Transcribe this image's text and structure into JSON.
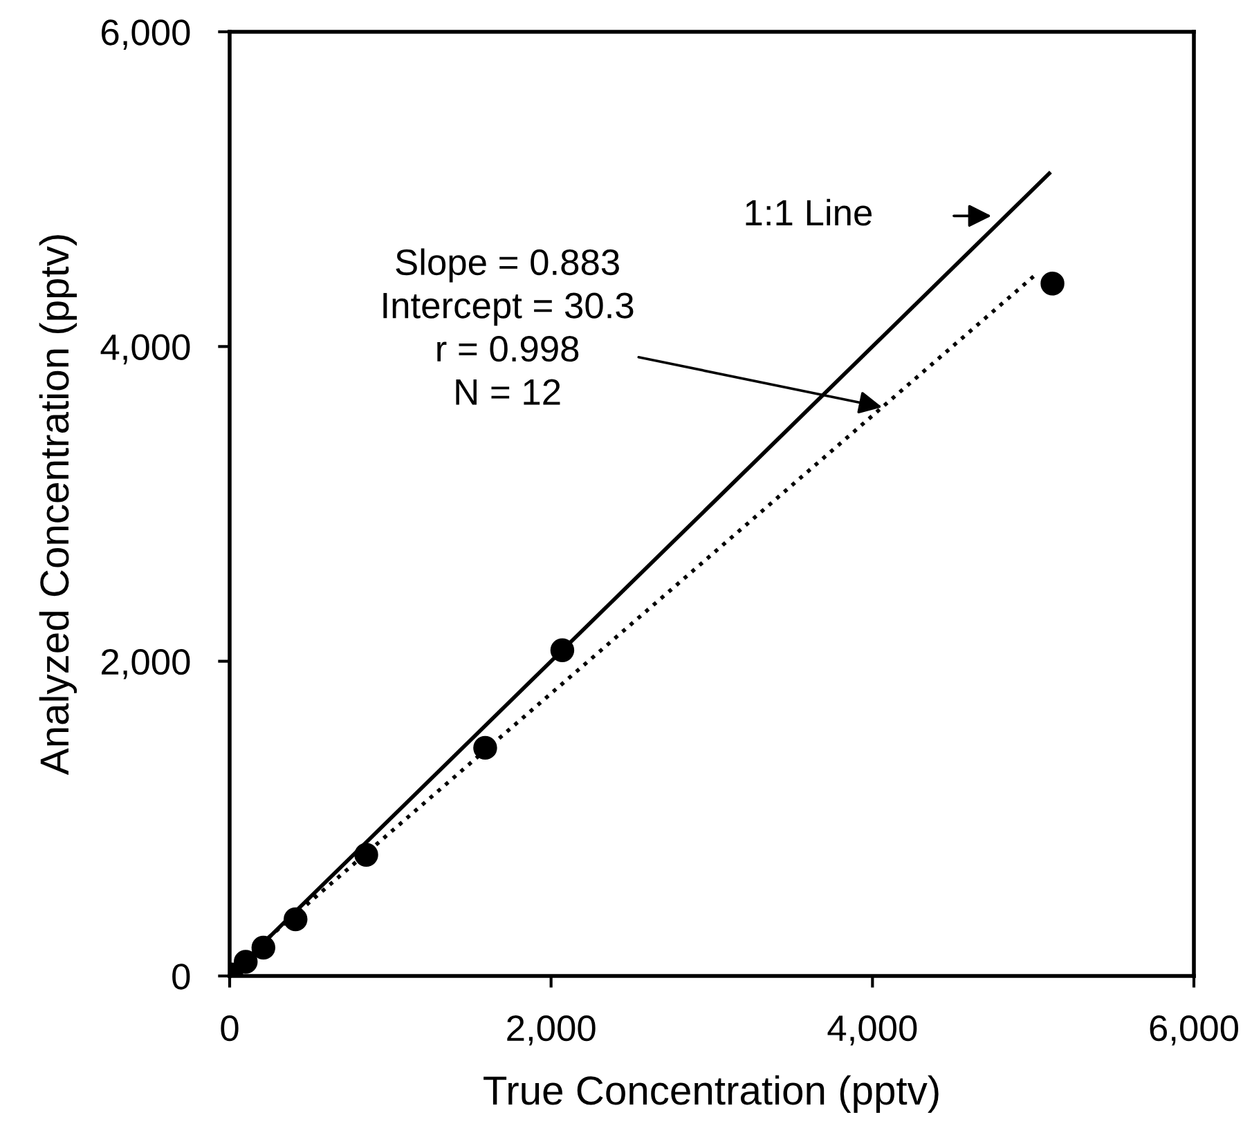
{
  "chart_data": {
    "type": "scatter",
    "xlabel": "True Concentration (pptv)",
    "ylabel": "Analyzed Concentration (pptv)",
    "xlim": [
      0,
      6000
    ],
    "ylim": [
      0,
      6000
    ],
    "xticks": [
      {
        "value": 0,
        "label": "0"
      },
      {
        "value": 2000,
        "label": "2,000"
      },
      {
        "value": 4000,
        "label": "4,000"
      },
      {
        "value": 6000,
        "label": "6,000"
      }
    ],
    "yticks": [
      {
        "value": 0,
        "label": "0"
      },
      {
        "value": 2000,
        "label": "2,000"
      },
      {
        "value": 4000,
        "label": "4,000"
      },
      {
        "value": 6000,
        "label": "6,000"
      }
    ],
    "grid": false,
    "legend": false,
    "series": [
      {
        "type": "line",
        "color": "#000000",
        "line_style": "solid",
        "marker": "none",
        "x": [
          0,
          5100
        ],
        "values": [
          0,
          5100
        ]
      },
      {
        "type": "line",
        "color": "#000000",
        "line_style": "dotted",
        "marker": "none",
        "x": [
          0,
          5030
        ],
        "values": [
          30,
          4470
        ]
      },
      {
        "color": "#000000",
        "marker": "circle",
        "x": [
          10,
          100,
          210,
          410,
          850,
          1590,
          2070,
          5120
        ],
        "values": [
          10,
          90,
          180,
          360,
          770,
          1450,
          2070,
          4400
        ]
      }
    ],
    "annotations": [
      "1:1 Line",
      {
        "text": "Slope = 0.883\nIntercept = 30.3\nr = 0.998\nN = 12",
        "x": 4060,
        "y": 3615
      }
    ]
  }
}
